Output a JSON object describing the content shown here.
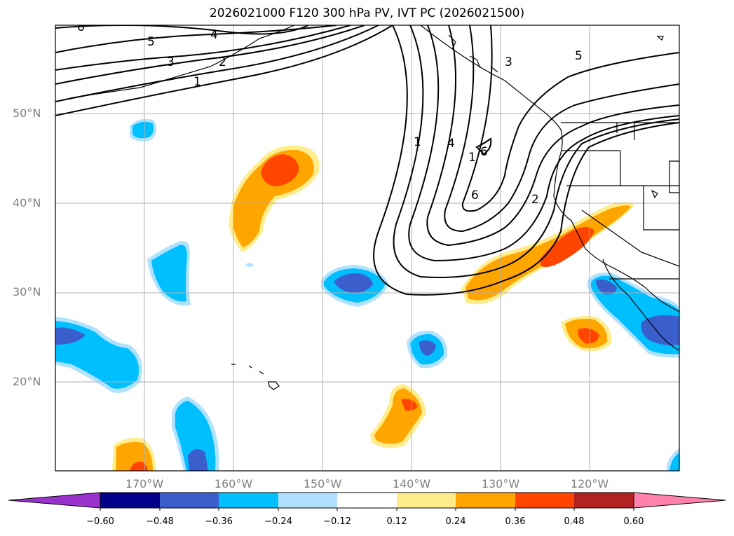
{
  "title": "2026021000 F120 300 hPa PV, IVT PC (2026021500)",
  "lat_labels": [
    "50°N",
    "40°N",
    "30°N",
    "20°N"
  ],
  "lon_labels": [
    "170°W",
    "160°W",
    "150°W",
    "140°W",
    "130°W",
    "120°W"
  ],
  "contour_labels": [
    "6",
    "5",
    "4",
    "3",
    "2",
    "1",
    "1",
    "3",
    "5",
    "4",
    "1",
    "6",
    "6",
    "2"
  ],
  "colorbar": {
    "ticks": [
      "−0.60",
      "−0.48",
      "−0.36",
      "−0.24",
      "−0.12",
      "0.12",
      "0.24",
      "0.36",
      "0.48",
      "0.60"
    ],
    "colors": [
      "#9932cc",
      "#00008b",
      "#3a5fcd",
      "#00bfff",
      "#b0e2ff",
      "#ffffff",
      "#ffec8b",
      "#ffa500",
      "#ff4500",
      "#b22222",
      "#ff82ab"
    ]
  },
  "colors": {
    "pos1": "#ffec8b",
    "pos2": "#ffa500",
    "pos3": "#ff4500",
    "neg1": "#b0e2ff",
    "neg2": "#00bfff",
    "neg3": "#3a5fcd",
    "grid": "#b0b0b0",
    "axis_text": "#808080"
  }
}
